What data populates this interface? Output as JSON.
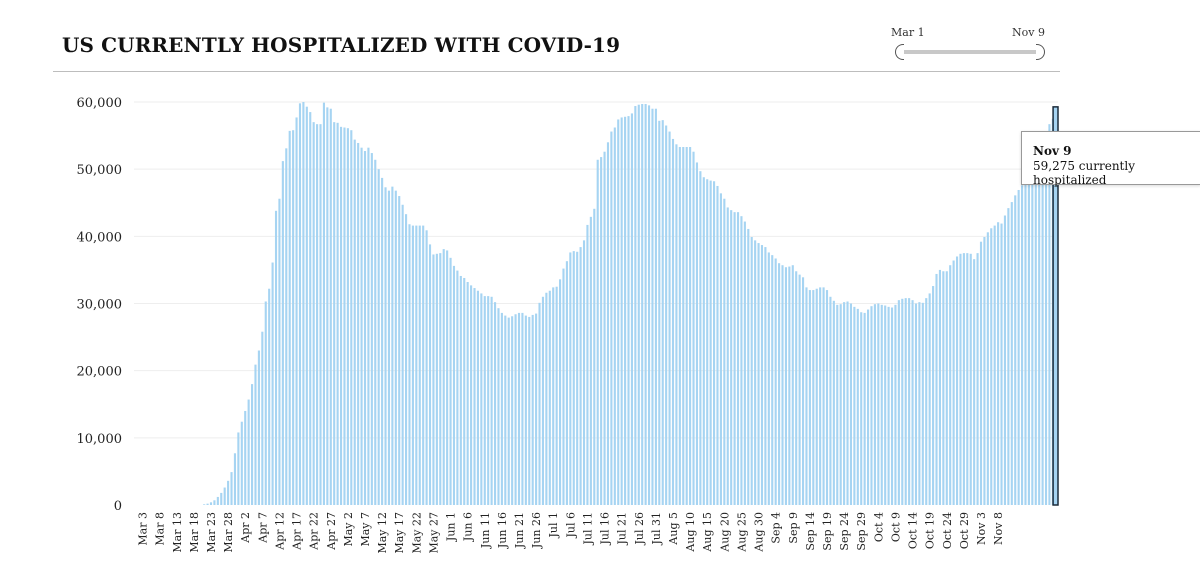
{
  "title": "US CURRENTLY HOSPITALIZED WITH COVID-19",
  "range_selector": {
    "start_label": "Mar 1",
    "end_label": "Nov 9"
  },
  "tooltip": {
    "date": "Nov 9",
    "value_text": "59,275 currently hospitalized"
  },
  "colors": {
    "bar": "#a6d4f2",
    "highlight_bar": "#a6d4f2",
    "highlight_outline": "#1b2b3a",
    "grid": "#eeeeee"
  },
  "chart_data": {
    "type": "bar",
    "title": "US CURRENTLY HOSPITALIZED WITH COVID-19",
    "ylim": [
      0,
      60000
    ],
    "yticks": [
      0,
      10000,
      20000,
      30000,
      40000,
      50000,
      60000
    ],
    "ytick_labels": [
      "0",
      "10,000",
      "20,000",
      "30,000",
      "40,000",
      "50,000",
      "60,000"
    ],
    "x_tick_labels": [
      "Mar 3",
      "Mar 8",
      "Mar 13",
      "Mar 18",
      "Mar 23",
      "Mar 28",
      "Apr 2",
      "Apr 7",
      "Apr 12",
      "Apr 17",
      "Apr 22",
      "Apr 27",
      "May 2",
      "May 7",
      "May 12",
      "May 17",
      "May 22",
      "May 27",
      "Jun 1",
      "Jun 6",
      "Jun 11",
      "Jun 16",
      "Jun 21",
      "Jun 26",
      "Jul 1",
      "Jul 6",
      "Jul 11",
      "Jul 16",
      "Jul 21",
      "Jul 26",
      "Jul 31",
      "Aug 5",
      "Aug 10",
      "Aug 15",
      "Aug 20",
      "Aug 25",
      "Aug 30",
      "Sep 4",
      "Sep 9",
      "Sep 14",
      "Sep 19",
      "Sep 24",
      "Sep 29",
      "Oct 4",
      "Oct 9",
      "Oct 14",
      "Oct 19",
      "Oct 24",
      "Oct 29",
      "Nov 3",
      "Nov 8"
    ],
    "start_date": "Mar 1",
    "end_date": "Nov 9",
    "highlight": {
      "date": "Nov 9",
      "value": 59275
    },
    "values": [
      0,
      0,
      0,
      0,
      0,
      0,
      0,
      0,
      0,
      0,
      0,
      0,
      0,
      0,
      0,
      0,
      0,
      0,
      0,
      0,
      100,
      200,
      400,
      700,
      1200,
      1800,
      2600,
      3600,
      4900,
      7700,
      10800,
      12400,
      14000,
      15700,
      18000,
      20900,
      23000,
      25800,
      30300,
      32200,
      36100,
      43800,
      45600,
      51200,
      53100,
      55700,
      55800,
      57700,
      59800,
      60000,
      59300,
      58500,
      57000,
      56700,
      56700,
      59900,
      59200,
      59000,
      57000,
      56900,
      56300,
      56200,
      56100,
      55800,
      54400,
      53900,
      53200,
      52700,
      53200,
      52400,
      51400,
      50000,
      48700,
      47300,
      46800,
      47400,
      46800,
      46000,
      44700,
      43300,
      41800,
      41600,
      41600,
      41600,
      41600,
      40900,
      38800,
      37300,
      37400,
      37500,
      38100,
      37900,
      36800,
      35600,
      34900,
      34100,
      33800,
      33200,
      32700,
      32300,
      31900,
      31500,
      31100,
      31100,
      31000,
      30200,
      29300,
      28600,
      28200,
      27900,
      28100,
      28400,
      28600,
      28600,
      28200,
      28000,
      28300,
      28500,
      30100,
      31000,
      31600,
      31900,
      32400,
      32500,
      33600,
      35200,
      36300,
      37600,
      37800,
      37700,
      38400,
      39400,
      41700,
      42900,
      44100,
      51400,
      51800,
      52600,
      54000,
      55600,
      56200,
      57400,
      57700,
      57800,
      57900,
      58300,
      59400,
      59600,
      59700,
      59700,
      59500,
      59000,
      59000,
      57200,
      57300,
      56500,
      55600,
      54500,
      53700,
      53300,
      53300,
      53300,
      53300,
      52600,
      51000,
      49700,
      48800,
      48500,
      48300,
      48200,
      47500,
      46400,
      45600,
      44300,
      43900,
      43600,
      43600,
      43000,
      42200,
      41100,
      39900,
      39400,
      39000,
      38700,
      38400,
      37600,
      37200,
      36700,
      36000,
      35700,
      35400,
      35500,
      35700,
      34800,
      34300,
      33900,
      32400,
      32000,
      32000,
      32200,
      32400,
      32400,
      32000,
      31000,
      30400,
      29800,
      29900,
      30200,
      30300,
      30000,
      29500,
      29200,
      28700,
      28600,
      29100,
      29600,
      29900,
      30000,
      29800,
      29700,
      29500,
      29400,
      29800,
      30500,
      30700,
      30800,
      30800,
      30500,
      30000,
      30200,
      30100,
      30800,
      31500,
      32600,
      34400,
      35000,
      34800,
      34800,
      35700,
      36400,
      37000,
      37400,
      37500,
      37500,
      37400,
      36600,
      37500,
      39200,
      39900,
      40600,
      41200,
      41600,
      42100,
      41900,
      43100,
      44200,
      45100,
      46100,
      46900,
      47600,
      48600,
      49600,
      50500,
      51600,
      52300,
      53700,
      54800,
      56700,
      57500,
      59275
    ]
  }
}
